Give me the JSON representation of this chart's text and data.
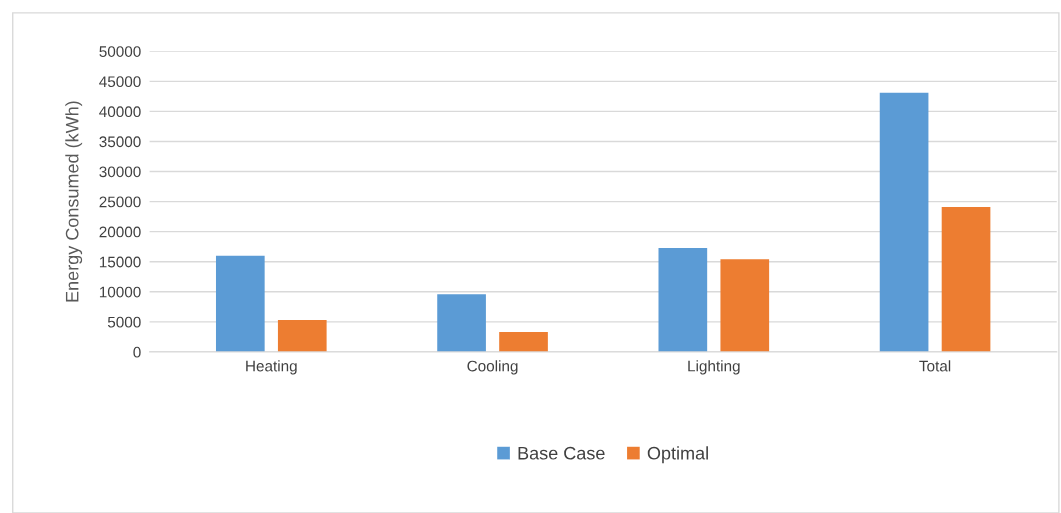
{
  "chart_data": {
    "type": "bar",
    "ylabel": "Energy Consumed (kWh)",
    "categories": [
      "Heating",
      "Cooling",
      "Lighting",
      "Total"
    ],
    "series": [
      {
        "name": "Base Case",
        "color": "#5b9bd5",
        "values": [
          16000,
          9600,
          17300,
          43100
        ]
      },
      {
        "name": "Optimal",
        "color": "#ed7d31",
        "values": [
          5300,
          3300,
          15400,
          24100
        ]
      }
    ],
    "ylim": [
      0,
      50000
    ],
    "yticks": [
      0,
      5000,
      10000,
      15000,
      20000,
      25000,
      30000,
      35000,
      40000,
      45000,
      50000
    ],
    "grid": "y",
    "legend": "bottom"
  }
}
